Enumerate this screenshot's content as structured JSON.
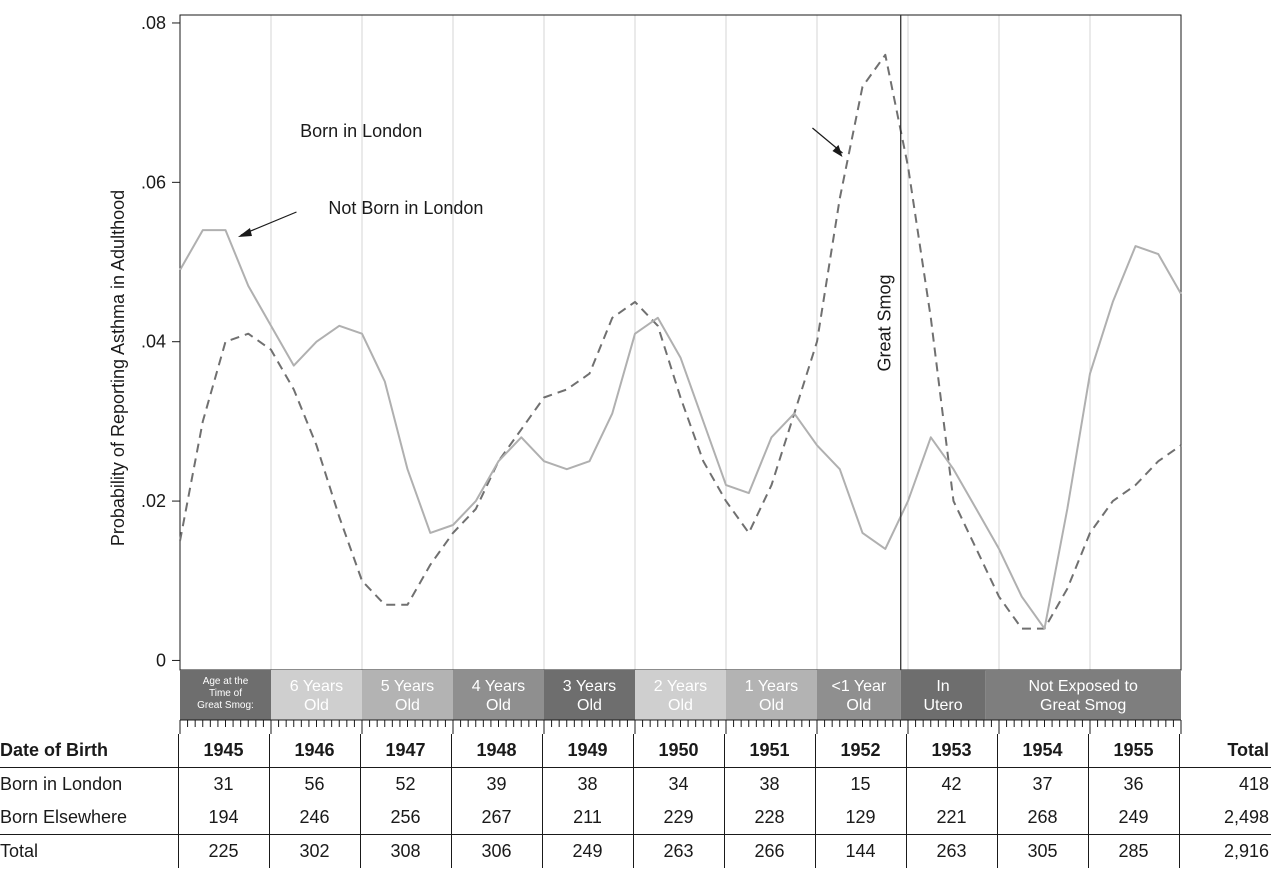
{
  "chart_data": {
    "type": "line",
    "title": "",
    "xlabel": "Date of Birth",
    "ylabel": "Probability of Reporting Asthma in Adulthood",
    "ylim": [
      -0.0012,
      0.081
    ],
    "yticks": [
      0,
      0.02,
      0.04,
      0.06,
      0.08
    ],
    "yticklabels": [
      "0",
      ".02",
      ".04",
      ".06",
      ".08"
    ],
    "xlim": [
      1945,
      1956
    ],
    "grid": "vertical lines at each year",
    "series": [
      {
        "name": "Born in London",
        "style": "dashed",
        "color": "#707070",
        "x": [
          1945.0,
          1945.25,
          1945.5,
          1945.75,
          1946.0,
          1946.25,
          1946.5,
          1946.75,
          1947.0,
          1947.25,
          1947.5,
          1947.75,
          1948.0,
          1948.25,
          1948.5,
          1948.75,
          1949.0,
          1949.25,
          1949.5,
          1949.75,
          1950.0,
          1950.25,
          1950.5,
          1950.75,
          1951.0,
          1951.25,
          1951.5,
          1951.75,
          1952.0,
          1952.25,
          1952.5,
          1952.75,
          1953.0,
          1953.25,
          1953.5,
          1953.75,
          1954.0,
          1954.25,
          1954.5,
          1954.75,
          1955.0,
          1955.25,
          1955.5,
          1955.75,
          1956.0
        ],
        "values": [
          0.015,
          0.03,
          0.04,
          0.041,
          0.039,
          0.034,
          0.027,
          0.018,
          0.01,
          0.007,
          0.007,
          0.012,
          0.016,
          0.019,
          0.025,
          0.029,
          0.033,
          0.034,
          0.036,
          0.043,
          0.045,
          0.042,
          0.033,
          0.025,
          0.02,
          0.016,
          0.022,
          0.031,
          0.04,
          0.058,
          0.072,
          0.076,
          0.062,
          0.043,
          0.02,
          0.014,
          0.008,
          0.004,
          0.004,
          0.009,
          0.016,
          0.02,
          0.022,
          0.025,
          0.027
        ]
      },
      {
        "name": "Not Born in London",
        "style": "solid",
        "color": "#b0b0b0",
        "x": [
          1945.0,
          1945.25,
          1945.5,
          1945.75,
          1946.0,
          1946.25,
          1946.5,
          1946.75,
          1947.0,
          1947.25,
          1947.5,
          1947.75,
          1948.0,
          1948.25,
          1948.5,
          1948.75,
          1949.0,
          1949.25,
          1949.5,
          1949.75,
          1950.0,
          1950.25,
          1950.5,
          1950.75,
          1951.0,
          1951.25,
          1951.5,
          1951.75,
          1952.0,
          1952.25,
          1952.5,
          1952.75,
          1953.0,
          1953.25,
          1953.5,
          1953.75,
          1954.0,
          1954.25,
          1954.5,
          1954.75,
          1955.0,
          1955.25,
          1955.5,
          1955.75,
          1956.0
        ],
        "values": [
          0.049,
          0.054,
          0.054,
          0.047,
          0.042,
          0.037,
          0.04,
          0.042,
          0.041,
          0.035,
          0.024,
          0.016,
          0.017,
          0.02,
          0.025,
          0.028,
          0.025,
          0.024,
          0.025,
          0.031,
          0.041,
          0.043,
          0.038,
          0.03,
          0.022,
          0.021,
          0.028,
          0.031,
          0.027,
          0.024,
          0.016,
          0.014,
          0.02,
          0.028,
          0.024,
          0.019,
          0.014,
          0.008,
          0.004,
          0.019,
          0.036,
          0.045,
          0.052,
          0.051,
          0.046
        ]
      }
    ],
    "event_line": {
      "x": 1952.92,
      "label": "Great Smog"
    },
    "annotations": [
      {
        "text": "Born in London"
      },
      {
        "text": "Not Born in London"
      }
    ],
    "age_bands": [
      {
        "label": [
          "Age at the",
          "Time of",
          "Great Smog:"
        ],
        "start": 1945,
        "end": 1946,
        "fill": "#6e6e6e",
        "text_color": "#ffffff",
        "small": true
      },
      {
        "label": [
          "6 Years",
          "Old"
        ],
        "start": 1946,
        "end": 1947,
        "fill": "#cfcfcf",
        "text_color": "#ffffff"
      },
      {
        "label": [
          "5 Years",
          "Old"
        ],
        "start": 1947,
        "end": 1948,
        "fill": "#b3b3b3",
        "text_color": "#ffffff"
      },
      {
        "label": [
          "4 Years",
          "Old"
        ],
        "start": 1948,
        "end": 1949,
        "fill": "#8f8f8f",
        "text_color": "#ffffff"
      },
      {
        "label": [
          "3 Years",
          "Old"
        ],
        "start": 1949,
        "end": 1950,
        "fill": "#6e6e6e",
        "text_color": "#ffffff"
      },
      {
        "label": [
          "2 Years",
          "Old"
        ],
        "start": 1950,
        "end": 1951,
        "fill": "#cfcfcf",
        "text_color": "#ffffff"
      },
      {
        "label": [
          "1 Years",
          "Old"
        ],
        "start": 1951,
        "end": 1952,
        "fill": "#b3b3b3",
        "text_color": "#ffffff"
      },
      {
        "label": [
          "<1 Year",
          "Old"
        ],
        "start": 1952,
        "end": 1952.92,
        "fill": "#8f8f8f",
        "text_color": "#ffffff"
      },
      {
        "label": [
          "In",
          "Utero"
        ],
        "start": 1952.92,
        "end": 1953.85,
        "fill": "#6e6e6e",
        "text_color": "#ffffff"
      },
      {
        "label": [
          "Not Exposed to",
          "Great Smog"
        ],
        "start": 1953.85,
        "end": 1956,
        "fill": "#7e7e7e",
        "text_color": "#ffffff"
      }
    ]
  },
  "table": {
    "header_label": "Date of Birth",
    "years": [
      "1945",
      "1946",
      "1947",
      "1948",
      "1949",
      "1950",
      "1951",
      "1952",
      "1953",
      "1954",
      "1955"
    ],
    "total_label": "Total",
    "rows": [
      {
        "label": "Born in London",
        "values": [
          "31",
          "56",
          "52",
          "39",
          "38",
          "34",
          "38",
          "15",
          "42",
          "37",
          "36"
        ],
        "total": "418"
      },
      {
        "label": "Born Elsewhere",
        "values": [
          "194",
          "246",
          "256",
          "267",
          "211",
          "229",
          "228",
          "129",
          "221",
          "268",
          "249"
        ],
        "total": "2,498"
      },
      {
        "label": "Total",
        "values": [
          "225",
          "302",
          "308",
          "306",
          "249",
          "263",
          "266",
          "144",
          "263",
          "305",
          "285"
        ],
        "total": "2,916"
      }
    ]
  }
}
